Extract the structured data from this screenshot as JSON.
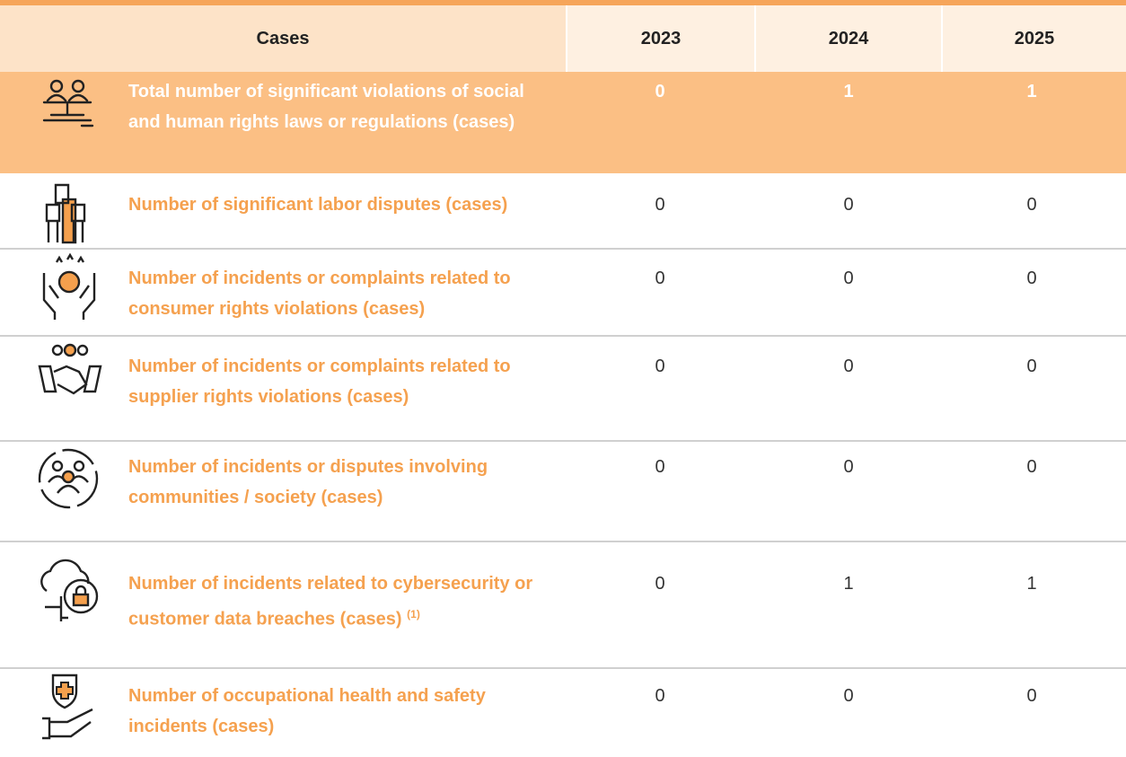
{
  "table": {
    "header": [
      "Cases",
      "2023",
      "2024",
      "2025"
    ],
    "rows": [
      {
        "label": "Total number of significant violations of social and human rights laws or regulations (cases)",
        "values": [
          0,
          1,
          1
        ]
      },
      {
        "label": "Number of significant labor disputes (cases)",
        "values": [
          0,
          0,
          0
        ]
      },
      {
        "label": "Number of incidents or complaints related to consumer rights violations (cases)",
        "values": [
          0,
          0,
          0
        ]
      },
      {
        "label": "Number of incidents or complaints related to supplier rights violations (cases)",
        "values": [
          0,
          0,
          0
        ]
      },
      {
        "label": "Number of incidents or disputes involving communities / society (cases)",
        "values": [
          0,
          0,
          0
        ]
      },
      {
        "label": "Number of incidents related to cybersecurity or customer data breaches (cases)",
        "note": "(1)",
        "values": [
          0,
          1,
          1
        ]
      },
      {
        "label": "Number of occupational health and safety incidents (cases)",
        "values": [
          0,
          0,
          0
        ]
      }
    ]
  }
}
